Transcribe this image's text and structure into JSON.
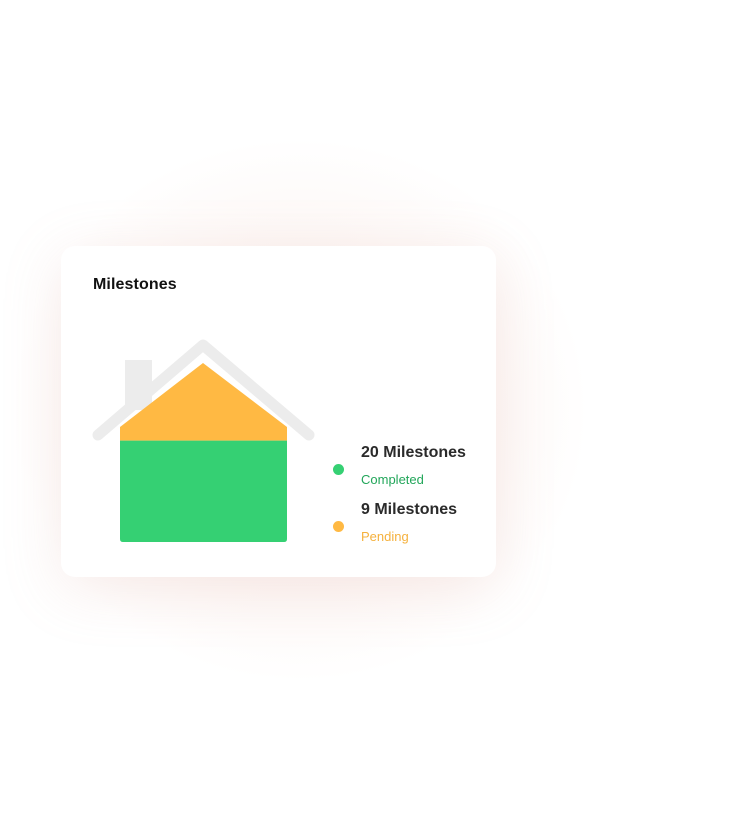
{
  "card": {
    "title": "Milestones"
  },
  "colors": {
    "completed": "#35d073",
    "pending": "#ffb943",
    "roof_outline": "#ececec",
    "completed_text": "#22a65a",
    "pending_text": "#f5b13d"
  },
  "chart_data": {
    "type": "bar",
    "categories": [
      "Completed",
      "Pending"
    ],
    "values": [
      20,
      9
    ],
    "title": "Milestones",
    "legend_placement": "right",
    "series": [
      {
        "name": "20 Milestones",
        "status": "Completed",
        "value": 20,
        "color": "#35d073"
      },
      {
        "name": "9 Milestones",
        "status": "Pending",
        "value": 9,
        "color": "#ffb943"
      }
    ]
  }
}
